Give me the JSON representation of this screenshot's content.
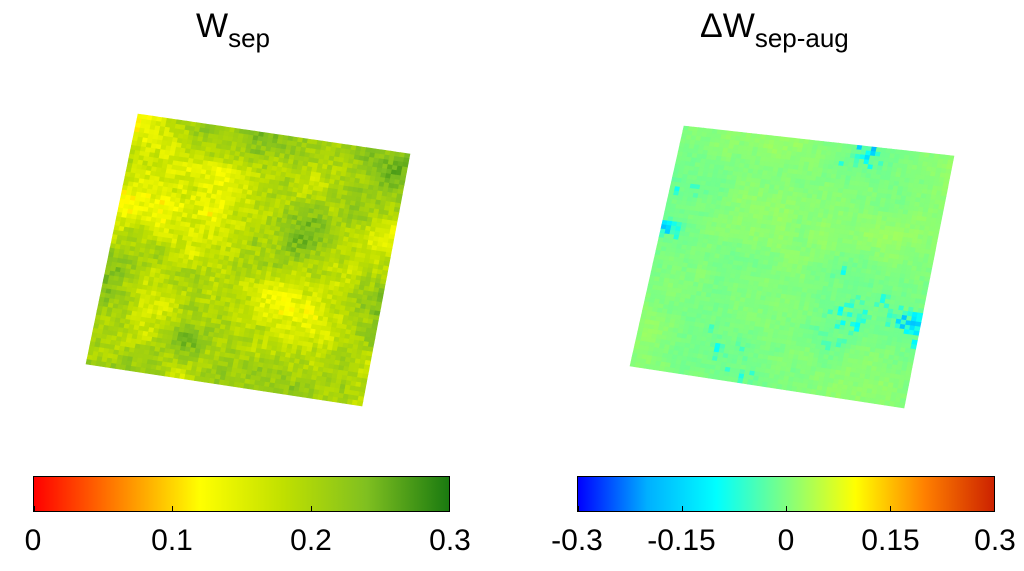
{
  "chart_data": [
    {
      "type": "heatmap",
      "title": "W",
      "title_subscript": "sep",
      "colormap": [
        "#ff0000",
        "#ff8000",
        "#ffff00",
        "#c0e000",
        "#80c020",
        "#1a7a10"
      ],
      "colorbar": {
        "min": 0,
        "max": 0.3,
        "ticks": [
          0,
          0.1,
          0.2,
          0.3
        ],
        "tick_labels": [
          "0",
          "0.1",
          "0.2",
          "0.3"
        ],
        "placement": "bottom"
      },
      "map_range": [
        0.05,
        0.3
      ],
      "map_dominant_value": 0.2
    },
    {
      "type": "heatmap",
      "title": "ΔW",
      "title_subscript": "sep-aug",
      "colormap": [
        "#0000ff",
        "#00b0ff",
        "#00ffff",
        "#80ff80",
        "#ffff00",
        "#ff8000",
        "#cc2200"
      ],
      "colorbar": {
        "min": -0.3,
        "max": 0.3,
        "ticks": [
          -0.3,
          -0.15,
          0,
          0.15,
          0.3
        ],
        "tick_labels": [
          "-0.3",
          "-0.15",
          "0",
          "0.15",
          "0.3"
        ],
        "placement": "bottom"
      },
      "map_range": [
        -0.3,
        0.05
      ],
      "map_dominant_value": 0.0
    }
  ]
}
